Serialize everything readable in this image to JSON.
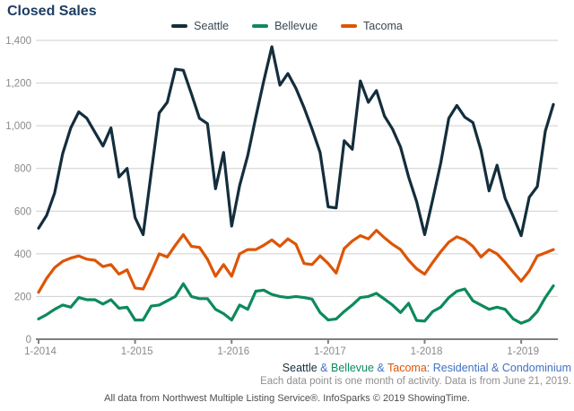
{
  "title": "Closed Sales",
  "colors": {
    "seattle": "#132e3c",
    "bellevue": "#0d8a5b",
    "tacoma": "#dd5506",
    "link": "#4170c4",
    "grid": "#cfcfcf",
    "axis": "#7f7f7f",
    "axis_label": "#8a8a8a",
    "title": "#1d3d63",
    "legend_text": "#394955",
    "footer_gray": "#8f8f8f",
    "footer_dark": "#4d4d4d"
  },
  "chart_data": {
    "type": "line",
    "title": "Closed Sales",
    "xlabel": "",
    "ylabel": "",
    "ylim": [
      0,
      1400
    ],
    "y_tick_step": 200,
    "y_tick_labels": [
      "0",
      "200",
      "400",
      "600",
      "800",
      "1,000",
      "1,200",
      "1,400"
    ],
    "x_tick_indices": [
      0,
      12,
      24,
      36,
      48,
      60
    ],
    "x_tick_labels": [
      "1-2014",
      "1-2015",
      "1-2016",
      "1-2017",
      "1-2018",
      "1-2019"
    ],
    "months_span": "Jan 2014 - May 2019",
    "grid": true,
    "legend_position": "top",
    "series": [
      {
        "name": "Seattle",
        "color_key": "seattle",
        "values": [
          520,
          580,
          685,
          870,
          990,
          1065,
          1035,
          970,
          905,
          990,
          760,
          800,
          570,
          490,
          780,
          1060,
          1110,
          1265,
          1260,
          1150,
          1035,
          1010,
          705,
          875,
          530,
          720,
          860,
          1040,
          1210,
          1370,
          1190,
          1245,
          1175,
          1085,
          985,
          875,
          620,
          615,
          930,
          890,
          1210,
          1110,
          1165,
          1045,
          985,
          900,
          760,
          645,
          490,
          655,
          825,
          1035,
          1095,
          1040,
          1015,
          885,
          695,
          815,
          660,
          575,
          485,
          665,
          715,
          975,
          1100
        ]
      },
      {
        "name": "Bellevue",
        "color_key": "bellevue",
        "values": [
          95,
          115,
          140,
          160,
          150,
          195,
          185,
          185,
          165,
          185,
          145,
          150,
          90,
          90,
          155,
          160,
          180,
          200,
          260,
          200,
          190,
          190,
          140,
          120,
          90,
          160,
          140,
          225,
          230,
          210,
          200,
          195,
          200,
          195,
          188,
          125,
          90,
          95,
          130,
          160,
          195,
          200,
          215,
          188,
          160,
          125,
          168,
          88,
          85,
          130,
          150,
          195,
          225,
          235,
          180,
          160,
          140,
          150,
          140,
          95,
          75,
          90,
          130,
          195,
          250
        ]
      },
      {
        "name": "Tacoma",
        "color_key": "tacoma",
        "values": [
          220,
          285,
          335,
          365,
          380,
          390,
          375,
          370,
          340,
          350,
          305,
          325,
          240,
          235,
          315,
          400,
          385,
          440,
          490,
          435,
          430,
          375,
          295,
          350,
          295,
          400,
          420,
          420,
          440,
          465,
          435,
          470,
          445,
          355,
          350,
          390,
          355,
          310,
          425,
          460,
          485,
          470,
          510,
          475,
          445,
          420,
          370,
          330,
          305,
          360,
          410,
          455,
          480,
          465,
          435,
          385,
          420,
          400,
          360,
          315,
          272,
          320,
          390,
          405,
          420
        ]
      }
    ]
  },
  "footer": {
    "line1_segments": [
      {
        "text": "Seattle",
        "color_key": "seattle"
      },
      {
        "text": " & ",
        "color_key": "link"
      },
      {
        "text": "Bellevue",
        "color_key": "bellevue"
      },
      {
        "text": " & ",
        "color_key": "link"
      },
      {
        "text": "Tacoma",
        "color_key": "tacoma"
      },
      {
        "text": ": Residential & Condominium",
        "color_key": "link"
      }
    ],
    "line2": "Each data point is one month of activity. Data is from June 21, 2019.",
    "line3": "All data from Northwest Multiple Listing Service®. InfoSparks © 2019 ShowingTime."
  }
}
